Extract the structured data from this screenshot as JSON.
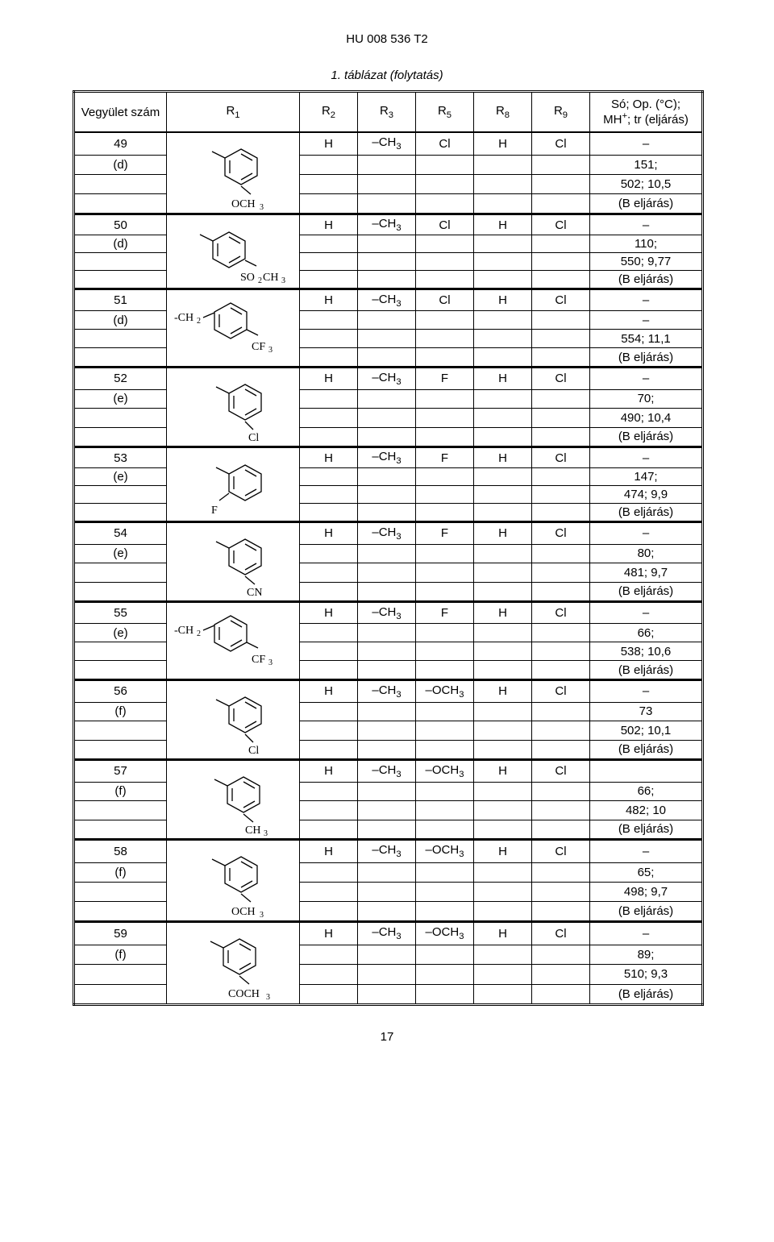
{
  "doc_id": "HU 008 536 T2",
  "table_caption": "1. táblázat (folytatás)",
  "page_number": "17",
  "header": {
    "c1": "Vegyület szám",
    "c2": "R",
    "c2_sub": "1",
    "c3": "R",
    "c3_sub": "2",
    "c4": "R",
    "c4_sub": "3",
    "c5": "R",
    "c5_sub": "5",
    "c6": "R",
    "c6_sub": "8",
    "c7": "R",
    "c7_sub": "9",
    "c8a": "Só; Op. (°C);",
    "c8b": "MH",
    "c8b_sup": "+",
    "c8c": "; tr (eljárás)"
  },
  "compounds": [
    {
      "num": "49",
      "marker": "(d)",
      "svg": "och3",
      "r2": "H",
      "r3": "–CH",
      "r3_sub": "3",
      "r5": "Cl",
      "r8": "H",
      "r9": "Cl",
      "v1": "–",
      "v2": "151;",
      "v3": "502; 10,5",
      "v4": "(B eljárás)"
    },
    {
      "num": "50",
      "marker": "(d)",
      "svg": "so2ch3",
      "r2": "H",
      "r3": "–CH",
      "r3_sub": "3",
      "r5": "Cl",
      "r8": "H",
      "r9": "Cl",
      "v1": "–",
      "v2": "110;",
      "v3": "550; 9,77",
      "v4": "(B eljárás)"
    },
    {
      "num": "51",
      "marker": "(d)",
      "svg": "ch2cf3",
      "r2": "H",
      "r3": "–CH",
      "r3_sub": "3",
      "r5": "Cl",
      "r8": "H",
      "r9": "Cl",
      "v1": "–",
      "v2": "–",
      "v3": "554; 11,1",
      "v4": "(B eljárás)"
    },
    {
      "num": "52",
      "marker": "(e)",
      "svg": "cl",
      "r2": "H",
      "r3": "–CH",
      "r3_sub": "3",
      "r5": "F",
      "r8": "H",
      "r9": "Cl",
      "v1": "–",
      "v2": "70;",
      "v3": "490; 10,4",
      "v4": "(B eljárás)"
    },
    {
      "num": "53",
      "marker": "(e)",
      "svg": "f",
      "r2": "H",
      "r3": "–CH",
      "r3_sub": "3",
      "r5": "F",
      "r8": "H",
      "r9": "Cl",
      "v1": "–",
      "v2": "147;",
      "v3": "474; 9,9",
      "v4": "(B eljárás)"
    },
    {
      "num": "54",
      "marker": "(e)",
      "svg": "cn",
      "r2": "H",
      "r3": "–CH",
      "r3_sub": "3",
      "r5": "F",
      "r8": "H",
      "r9": "Cl",
      "v1": "–",
      "v2": "80;",
      "v3": "481; 9,7",
      "v4": "(B eljárás)"
    },
    {
      "num": "55",
      "marker": "(e)",
      "svg": "ch2cf3",
      "r2": "H",
      "r3": "–CH",
      "r3_sub": "3",
      "r5": "F",
      "r8": "H",
      "r9": "Cl",
      "v1": "–",
      "v2": "66;",
      "v3": "538; 10,6",
      "v4": "(B eljárás)"
    },
    {
      "num": "56",
      "marker": "(f)",
      "svg": "cl",
      "r2": "H",
      "r3": "–CH",
      "r3_sub": "3",
      "r5": "–OCH",
      "r5_sub": "3",
      "r8": "H",
      "r9": "Cl",
      "v1": "–",
      "v2": "73",
      "v3": "502; 10,1",
      "v4": "(B eljárás)"
    },
    {
      "num": "57",
      "marker": "(f)",
      "svg": "ch3",
      "r2": "H",
      "r3": "–CH",
      "r3_sub": "3",
      "r5": "–OCH",
      "r5_sub": "3",
      "r8": "H",
      "r9": "Cl",
      "v1": "",
      "v2": "66;",
      "v3": "482; 10",
      "v4": "(B eljárás)"
    },
    {
      "num": "58",
      "marker": "(f)",
      "svg": "och3",
      "r2": "H",
      "r3": "–CH",
      "r3_sub": "3",
      "r5": "–OCH",
      "r5_sub": "3",
      "r8": "H",
      "r9": "Cl",
      "v1": "–",
      "v2": "65;",
      "v3": "498; 9,7",
      "v4": "(B eljárás)"
    },
    {
      "num": "59",
      "marker": "(f)",
      "svg": "coch3",
      "r2": "H",
      "r3": "–CH",
      "r3_sub": "3",
      "r5": "–OCH",
      "r5_sub": "3",
      "r8": "H",
      "r9": "Cl",
      "v1": "–",
      "v2": "89;",
      "v3": "510; 9,3",
      "v4": "(B eljárás)"
    }
  ]
}
